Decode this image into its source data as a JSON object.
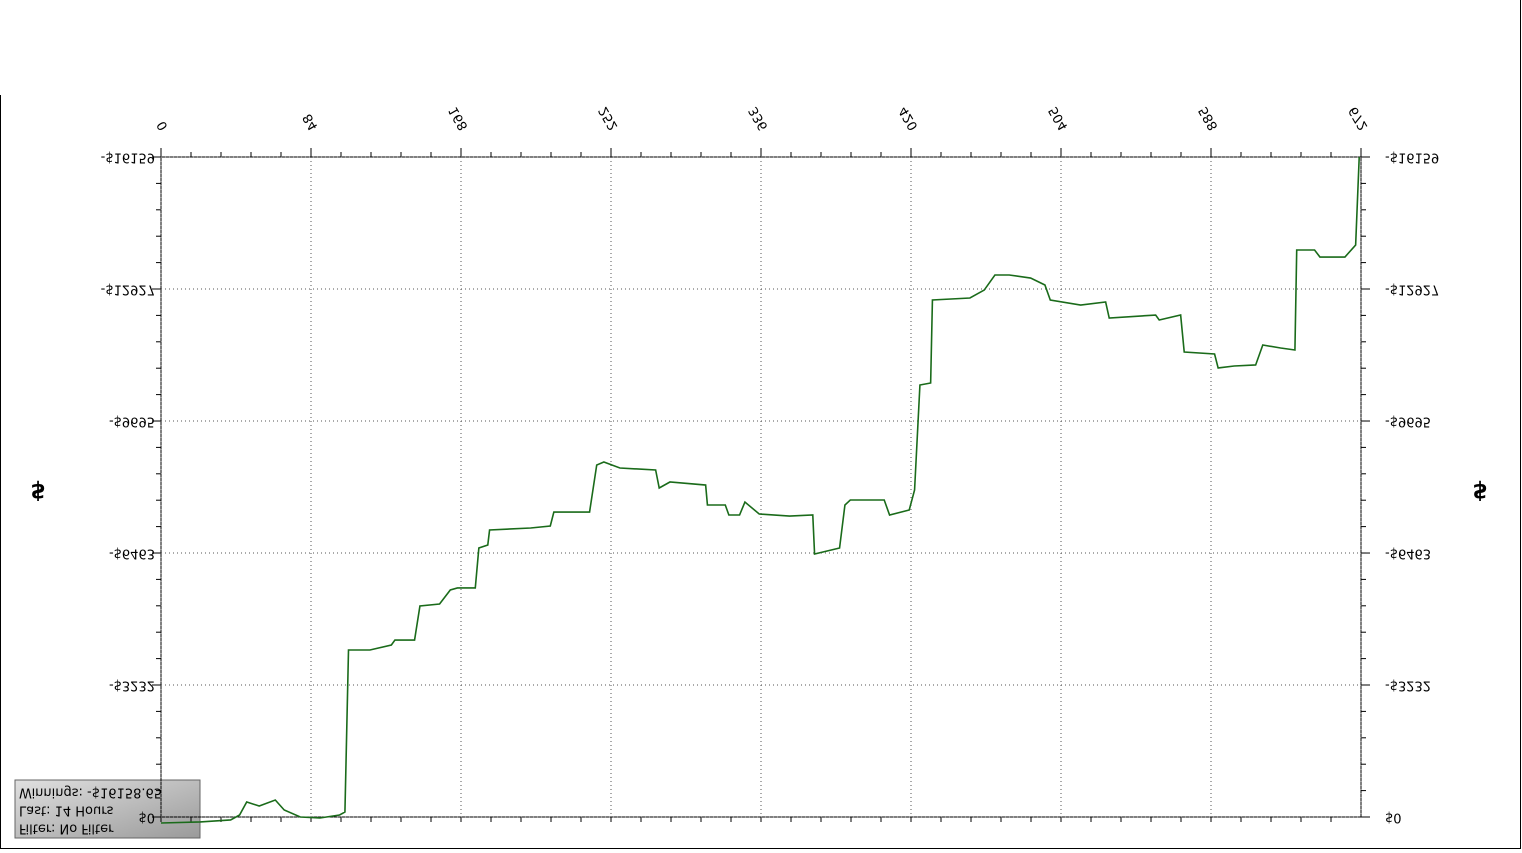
{
  "chart_data": {
    "type": "line",
    "y_label": "$",
    "annotations": [
      "Winnings: -$16158.65",
      "Last: 14 Hours",
      "Filter: No Filter"
    ],
    "xlim": [
      0,
      672
    ],
    "xticks": [
      0,
      84,
      168,
      252,
      336,
      420,
      504,
      588,
      672
    ],
    "ylim": [
      -16159,
      0
    ],
    "yticks": [
      {
        "value": -16159,
        "label": "-$16159"
      },
      {
        "value": -12927,
        "label": "-$12927"
      },
      {
        "value": -9695,
        "label": "-$9695"
      },
      {
        "value": -6463,
        "label": "-$6463"
      },
      {
        "value": -3232,
        "label": "-$3232"
      },
      {
        "value": 0,
        "label": "$0"
      }
    ],
    "grid": true,
    "flipped_vertical": true,
    "series": [
      {
        "color": "#1a6b1a",
        "x": [
          0,
          22,
          39,
          44,
          48,
          55,
          64,
          69,
          78,
          89,
          100,
          103,
          105,
          117,
          129,
          131,
          142,
          145,
          156,
          162,
          166,
          176,
          178,
          183,
          184,
          207,
          218,
          220,
          240,
          244,
          248,
          257,
          277,
          279,
          285,
          305,
          306,
          316,
          318,
          324,
          327,
          335,
          352,
          365,
          366,
          380,
          383,
          386,
          405,
          408,
          419,
          422,
          425,
          431,
          432,
          453,
          461,
          467,
          475,
          487,
          495,
          498,
          515,
          529,
          531,
          557,
          559,
          571,
          573,
          590,
          592,
          601,
          613,
          617,
          627,
          635,
          636,
          646,
          649,
          663,
          669,
          671
        ],
        "values": [
          147,
          122,
          73,
          -49,
          -367,
          -269,
          -416,
          -171,
          0,
          24,
          -49,
          -122,
          -4089,
          -4089,
          -4211,
          -4333,
          -4333,
          -5166,
          -5215,
          -5558,
          -5607,
          -5607,
          -6586,
          -6659,
          -7027,
          -7076,
          -7125,
          -7467,
          -7467,
          -8618,
          -8691,
          -8545,
          -8496,
          -8055,
          -8202,
          -8128,
          -7639,
          -7639,
          -7394,
          -7394,
          -7712,
          -7418,
          -7369,
          -7394,
          -6439,
          -6586,
          -7639,
          -7761,
          -7761,
          -7394,
          -7516,
          -8006,
          -10577,
          -10626,
          -12658,
          -12707,
          -12902,
          -13270,
          -13270,
          -13196,
          -13025,
          -12658,
          -12535,
          -12609,
          -12217,
          -12290,
          -12168,
          -12290,
          -11385,
          -11336,
          -10994,
          -11042,
          -11067,
          -11556,
          -11483,
          -11434,
          -13882,
          -13882,
          -13710,
          -13710,
          -14004,
          -16159
        ]
      }
    ]
  }
}
